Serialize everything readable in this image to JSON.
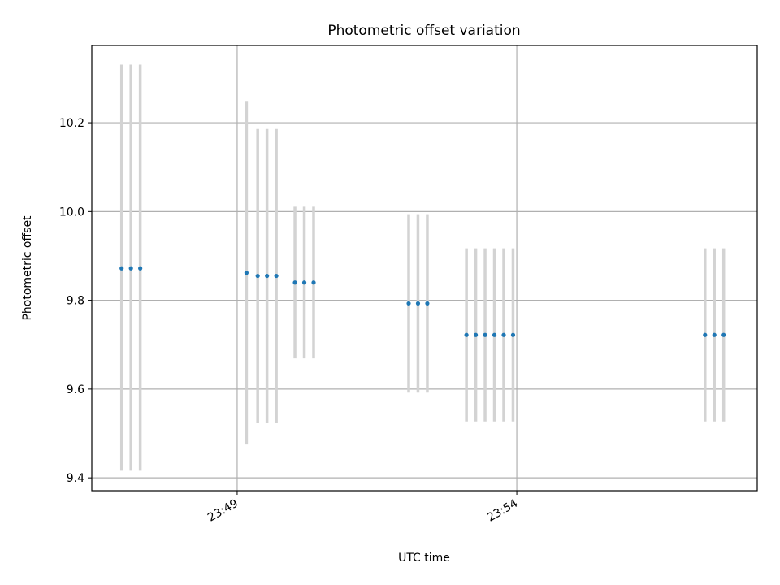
{
  "chart_data": {
    "type": "scatter",
    "title": "Photometric offset variation",
    "xlabel": "UTC time",
    "ylabel": "Photometric offset",
    "x_axis": {
      "type": "time",
      "range": [
        "23:46:24",
        "23:58:18"
      ],
      "ticks": [
        {
          "value": "23:49:00",
          "label": "23:49"
        },
        {
          "value": "23:54:00",
          "label": "23:54"
        }
      ],
      "tick_label_rotation_deg": -30
    },
    "y_axis": {
      "range": [
        9.371,
        10.374
      ],
      "ticks": [
        {
          "value": 9.4,
          "label": "9.4"
        },
        {
          "value": 9.6,
          "label": "9.6"
        },
        {
          "value": 9.8,
          "label": "9.8"
        },
        {
          "value": 10.0,
          "label": "10.0"
        },
        {
          "value": 10.2,
          "label": "10.2"
        }
      ]
    },
    "grid": true,
    "legend": "none",
    "colors": {
      "marker": "#1f77b4",
      "error_bar": "#d3d3d3",
      "grid": "#b0b0b0",
      "axes": "#000000"
    },
    "series": [
      {
        "points": [
          {
            "x": "23:46:56",
            "y": 9.872,
            "yerr_low": 9.416,
            "yerr_high": 10.331
          },
          {
            "x": "23:47:06",
            "y": 9.872,
            "yerr_low": 9.416,
            "yerr_high": 10.331
          },
          {
            "x": "23:47:16",
            "y": 9.872,
            "yerr_low": 9.416,
            "yerr_high": 10.331
          },
          {
            "x": "23:49:10",
            "y": 9.862,
            "yerr_low": 9.475,
            "yerr_high": 10.249
          },
          {
            "x": "23:49:22",
            "y": 9.855,
            "yerr_low": 9.524,
            "yerr_high": 10.186
          },
          {
            "x": "23:49:32",
            "y": 9.855,
            "yerr_low": 9.524,
            "yerr_high": 10.186
          },
          {
            "x": "23:49:42",
            "y": 9.855,
            "yerr_low": 9.524,
            "yerr_high": 10.186
          },
          {
            "x": "23:50:02",
            "y": 9.84,
            "yerr_low": 9.669,
            "yerr_high": 10.011
          },
          {
            "x": "23:50:12",
            "y": 9.84,
            "yerr_low": 9.669,
            "yerr_high": 10.011
          },
          {
            "x": "23:50:22",
            "y": 9.84,
            "yerr_low": 9.669,
            "yerr_high": 10.011
          },
          {
            "x": "23:52:04",
            "y": 9.793,
            "yerr_low": 9.592,
            "yerr_high": 9.994
          },
          {
            "x": "23:52:14",
            "y": 9.793,
            "yerr_low": 9.592,
            "yerr_high": 9.994
          },
          {
            "x": "23:52:24",
            "y": 9.793,
            "yerr_low": 9.592,
            "yerr_high": 9.994
          },
          {
            "x": "23:53:06",
            "y": 9.722,
            "yerr_low": 9.527,
            "yerr_high": 9.917
          },
          {
            "x": "23:53:16",
            "y": 9.722,
            "yerr_low": 9.527,
            "yerr_high": 9.917
          },
          {
            "x": "23:53:26",
            "y": 9.722,
            "yerr_low": 9.527,
            "yerr_high": 9.917
          },
          {
            "x": "23:53:36",
            "y": 9.722,
            "yerr_low": 9.527,
            "yerr_high": 9.917
          },
          {
            "x": "23:53:46",
            "y": 9.722,
            "yerr_low": 9.527,
            "yerr_high": 9.917
          },
          {
            "x": "23:53:56",
            "y": 9.722,
            "yerr_low": 9.527,
            "yerr_high": 9.917
          },
          {
            "x": "23:57:22",
            "y": 9.722,
            "yerr_low": 9.527,
            "yerr_high": 9.917
          },
          {
            "x": "23:57:32",
            "y": 9.722,
            "yerr_low": 9.527,
            "yerr_high": 9.917
          },
          {
            "x": "23:57:42",
            "y": 9.722,
            "yerr_low": 9.527,
            "yerr_high": 9.917
          }
        ]
      }
    ]
  }
}
